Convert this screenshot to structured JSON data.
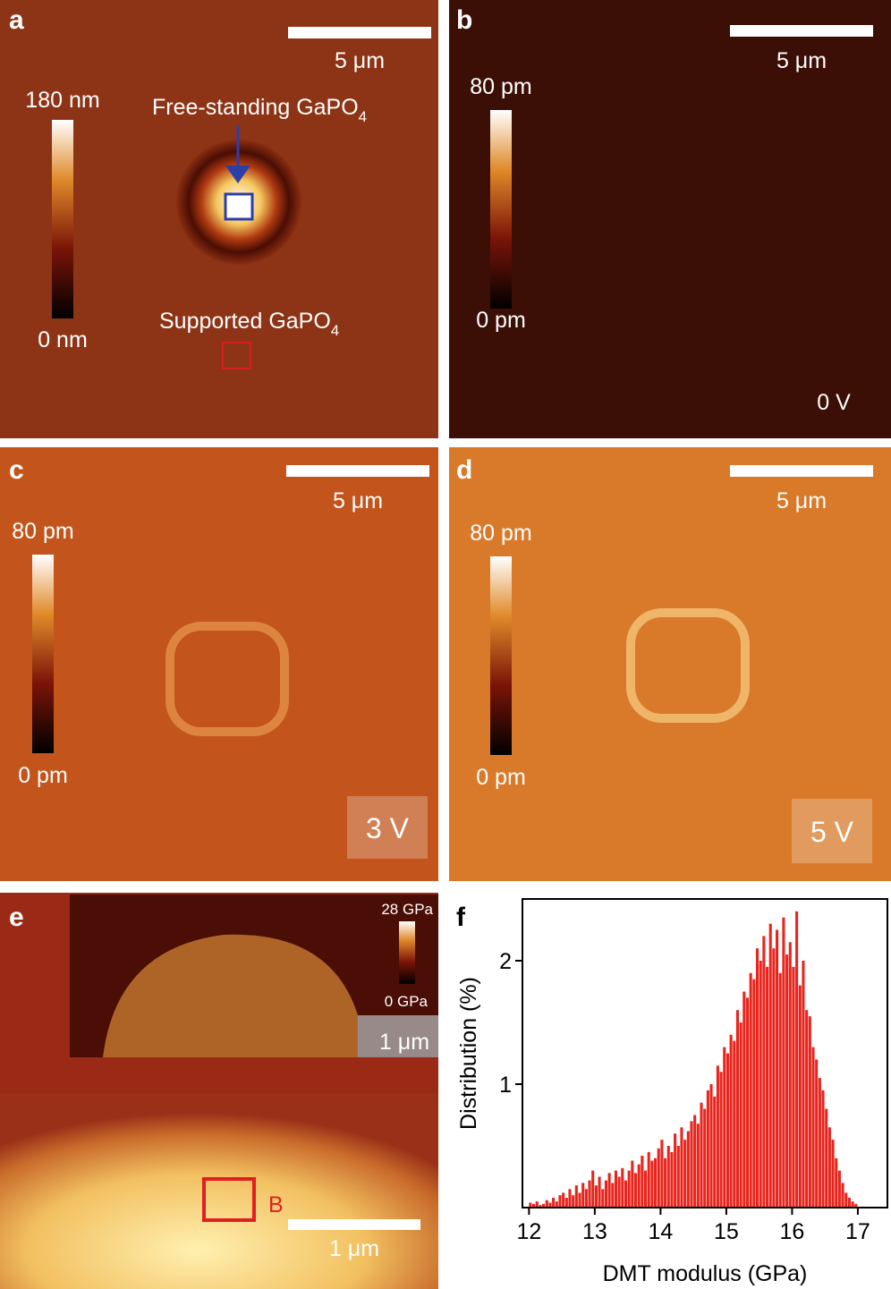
{
  "panels": {
    "a": {
      "label": "a",
      "scale_bar": "5 μm",
      "colorbar_max": "180 nm",
      "colorbar_min": "0 nm",
      "annotation_free": {
        "text": "Free-standing GaPO",
        "subscript": "4"
      },
      "annotation_supported": {
        "text": "Supported GaPO",
        "subscript": "4"
      }
    },
    "b": {
      "label": "b",
      "scale_bar": "5 μm",
      "colorbar_max": "80 pm",
      "colorbar_min": "0 pm",
      "voltage": "0 V"
    },
    "c": {
      "label": "c",
      "scale_bar": "5 μm",
      "colorbar_max": "80 pm",
      "colorbar_min": "0 pm",
      "voltage": "3 V"
    },
    "d": {
      "label": "d",
      "scale_bar": "5 μm",
      "colorbar_max": "80 pm",
      "colorbar_min": "0 pm",
      "voltage": "5 V"
    },
    "e": {
      "label": "e",
      "colorbar_max": "28 GPa",
      "colorbar_min": "0 GPa",
      "inset_scale_bar": "1 μm",
      "scale_bar": "1 μm",
      "box_label": "B"
    },
    "f": {
      "label": "f"
    }
  },
  "chart_data": {
    "type": "histogram",
    "xlabel": "DMT modulus (GPa)",
    "ylabel": "Distribution (%)",
    "color": "#e8241c",
    "bins": [
      12,
      12.05,
      12.1,
      12.15,
      12.2,
      12.25,
      12.3,
      12.35,
      12.4,
      12.45,
      12.5,
      12.55,
      12.6,
      12.65,
      12.7,
      12.75,
      12.8,
      12.85,
      12.9,
      12.95,
      13,
      13.05,
      13.1,
      13.15,
      13.2,
      13.25,
      13.3,
      13.35,
      13.4,
      13.45,
      13.5,
      13.55,
      13.6,
      13.65,
      13.7,
      13.75,
      13.8,
      13.85,
      13.9,
      13.95,
      14,
      14.05,
      14.1,
      14.15,
      14.2,
      14.25,
      14.3,
      14.35,
      14.4,
      14.45,
      14.5,
      14.55,
      14.6,
      14.65,
      14.7,
      14.75,
      14.8,
      14.85,
      14.9,
      14.95,
      15,
      15.05,
      15.1,
      15.15,
      15.2,
      15.25,
      15.3,
      15.35,
      15.4,
      15.45,
      15.5,
      15.55,
      15.6,
      15.65,
      15.7,
      15.75,
      15.8,
      15.85,
      15.9,
      15.95,
      16,
      16.05,
      16.1,
      16.15,
      16.2,
      16.25,
      16.3,
      16.35,
      16.4,
      16.45,
      16.5,
      16.55,
      16.6,
      16.65,
      16.7,
      16.75,
      16.8,
      16.85,
      16.9,
      16.95,
      17
    ],
    "values": [
      0.04,
      0.03,
      0.05,
      0.02,
      0.03,
      0.06,
      0.04,
      0.08,
      0.05,
      0.1,
      0.12,
      0.08,
      0.15,
      0.1,
      0.18,
      0.12,
      0.2,
      0.15,
      0.22,
      0.3,
      0.18,
      0.25,
      0.15,
      0.22,
      0.28,
      0.2,
      0.3,
      0.25,
      0.32,
      0.22,
      0.3,
      0.38,
      0.28,
      0.35,
      0.42,
      0.3,
      0.45,
      0.38,
      0.4,
      0.48,
      0.55,
      0.4,
      0.5,
      0.45,
      0.6,
      0.5,
      0.65,
      0.55,
      0.62,
      0.7,
      0.75,
      0.68,
      0.85,
      0.8,
      0.95,
      1.0,
      0.9,
      1.15,
      1.1,
      1.3,
      1.25,
      1.4,
      1.35,
      1.6,
      1.5,
      1.75,
      1.7,
      1.9,
      1.85,
      2.1,
      2.0,
      2.2,
      1.95,
      2.3,
      2.1,
      2.25,
      1.9,
      2.35,
      2.05,
      2.15,
      1.95,
      2.4,
      1.8,
      2.0,
      1.6,
      1.55,
      1.3,
      1.2,
      1.05,
      0.95,
      0.8,
      0.65,
      0.55,
      0.4,
      0.3,
      0.2,
      0.12,
      0.08,
      0.05,
      0.03
    ],
    "xlim": [
      11.9,
      17.45
    ],
    "xticks": [
      12,
      13,
      14,
      15,
      16,
      17
    ],
    "ylim": [
      0,
      2.5
    ],
    "yticks": [
      1,
      2
    ]
  }
}
